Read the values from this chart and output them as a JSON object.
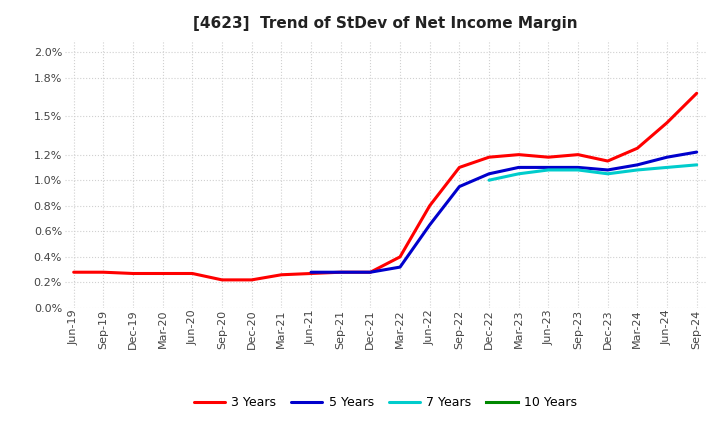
{
  "title": "[4623]  Trend of StDev of Net Income Margin",
  "background_color": "#ffffff",
  "grid_color": "#d0d0d0",
  "series": {
    "3 Years": {
      "color": "#ff0000",
      "data_y": [
        0.0028,
        0.0028,
        0.0027,
        0.0027,
        0.0027,
        0.0022,
        0.0022,
        0.0026,
        0.0027,
        0.0028,
        0.0028,
        0.004,
        0.008,
        0.011,
        0.0118,
        0.012,
        0.0118,
        0.012,
        0.0115,
        0.0125,
        0.0145,
        0.0168
      ]
    },
    "5 Years": {
      "color": "#0000cc",
      "data_y": [
        null,
        null,
        null,
        null,
        null,
        null,
        null,
        null,
        0.0028,
        0.0028,
        0.0028,
        0.0032,
        0.0065,
        0.0095,
        0.0105,
        0.011,
        0.011,
        0.011,
        0.0108,
        0.0112,
        0.0118,
        0.0122
      ]
    },
    "7 Years": {
      "color": "#00cccc",
      "data_y": [
        null,
        null,
        null,
        null,
        null,
        null,
        null,
        null,
        null,
        null,
        null,
        null,
        null,
        null,
        0.01,
        0.0105,
        0.0108,
        0.0108,
        0.0105,
        0.0108,
        0.011,
        0.0112
      ]
    },
    "10 Years": {
      "color": "#008800",
      "data_y": [
        null,
        null,
        null,
        null,
        null,
        null,
        null,
        null,
        null,
        null,
        null,
        null,
        null,
        null,
        null,
        null,
        null,
        null,
        null,
        null,
        null,
        null
      ]
    }
  },
  "x_labels": [
    "Jun-19",
    "Sep-19",
    "Dec-19",
    "Mar-20",
    "Jun-20",
    "Sep-20",
    "Dec-20",
    "Mar-21",
    "Jun-21",
    "Sep-21",
    "Dec-21",
    "Mar-22",
    "Jun-22",
    "Sep-22",
    "Dec-22",
    "Mar-23",
    "Jun-23",
    "Sep-23",
    "Dec-23",
    "Mar-24",
    "Jun-24",
    "Sep-24"
  ],
  "yticks": [
    0.0,
    0.002,
    0.004,
    0.006,
    0.008,
    0.01,
    0.012,
    0.015,
    0.018,
    0.02
  ],
  "ytick_labels": [
    "0.0%",
    "0.2%",
    "0.4%",
    "0.6%",
    "0.8%",
    "1.0%",
    "1.2%",
    "1.5%",
    "1.8%",
    "2.0%"
  ],
  "ylim": [
    0.0,
    0.021
  ],
  "line_width": 2.2,
  "title_fontsize": 11,
  "tick_fontsize": 8,
  "legend_fontsize": 9
}
